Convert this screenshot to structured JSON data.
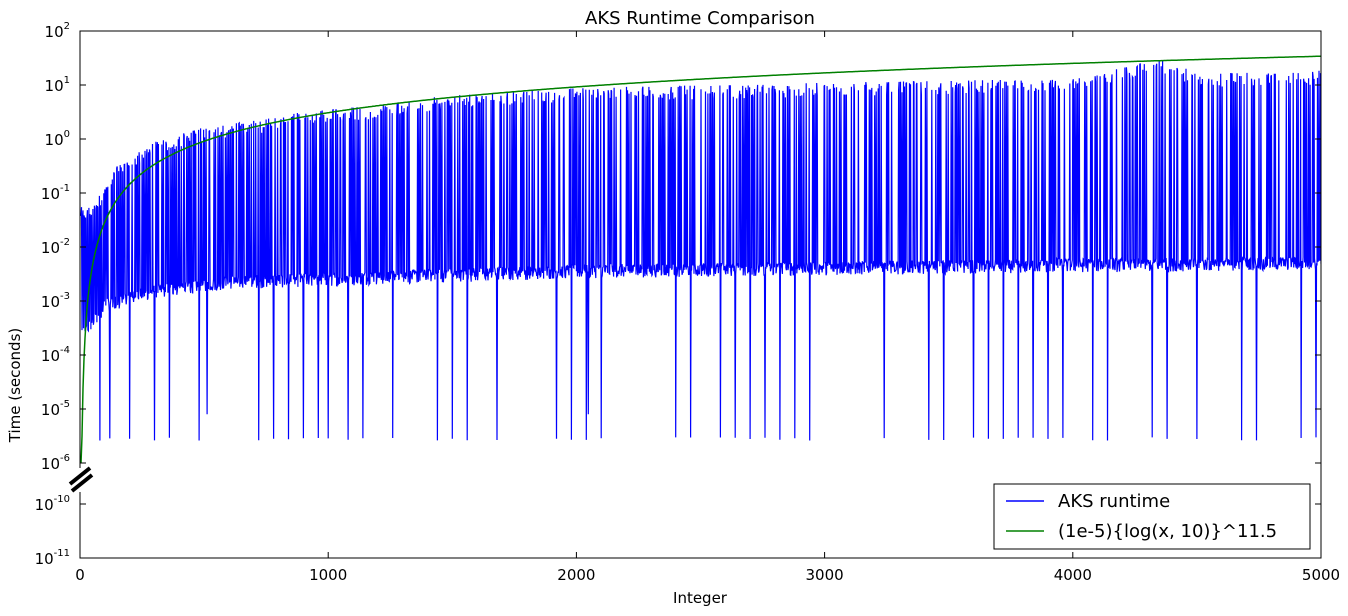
{
  "chart_data": {
    "type": "line",
    "title": "AKS Runtime Comparison",
    "xlabel": "Integer",
    "ylabel": "Time (seconds)",
    "xlim": [
      0,
      5000
    ],
    "yscale": "log",
    "ylim": [
      1e-11,
      100
    ],
    "y_axis_break": "broken between 10^-6 and 10^-10",
    "x_ticks": [
      "0",
      "1000",
      "2000",
      "3000",
      "4000",
      "5000"
    ],
    "y_ticks": [
      {
        "base": "10",
        "exp": "2"
      },
      {
        "base": "10",
        "exp": "1"
      },
      {
        "base": "10",
        "exp": "0"
      },
      {
        "base": "10",
        "exp": "-1"
      },
      {
        "base": "10",
        "exp": "-2"
      },
      {
        "base": "10",
        "exp": "-3"
      },
      {
        "base": "10",
        "exp": "-4"
      },
      {
        "base": "10",
        "exp": "-5"
      },
      {
        "base": "10",
        "exp": "-6"
      },
      {
        "base": "10",
        "exp": "-10"
      },
      {
        "base": "10",
        "exp": "-11"
      }
    ],
    "legend_position": "lower-right",
    "series": [
      {
        "name": "AKS runtime",
        "color": "#0000ff",
        "approx_profile": {
          "composite_baseline": [
            [
              20,
              0.00025
            ],
            [
              100,
              0.0008
            ],
            [
              300,
              0.0015
            ],
            [
              600,
              0.0022
            ],
            [
              1000,
              0.0025
            ],
            [
              2000,
              0.0035
            ],
            [
              3000,
              0.004
            ],
            [
              4000,
              0.0045
            ],
            [
              5000,
              0.005
            ]
          ],
          "prime_peaks": [
            [
              50,
              0.05
            ],
            [
              150,
              0.3
            ],
            [
              300,
              0.8
            ],
            [
              500,
              1.5
            ],
            [
              700,
              2.0
            ],
            [
              900,
              3.0
            ],
            [
              1200,
              4.0
            ],
            [
              1500,
              6.0
            ],
            [
              2000,
              8.0
            ],
            [
              2500,
              9.0
            ],
            [
              3000,
              10.0
            ],
            [
              3500,
              11.0
            ],
            [
              4000,
              12.0
            ],
            [
              4363,
              28.0
            ],
            [
              4500,
              15.0
            ],
            [
              5000,
              17.0
            ]
          ],
          "power_of_prime_dips": [
            [
              17,
              3e-06
            ],
            [
              80,
              2.7e-06
            ],
            [
              200,
              2.7e-06
            ],
            [
              512,
              8e-06
            ],
            [
              1000,
              2.8e-06
            ],
            [
              2048,
              8e-06
            ],
            [
              3000,
              2.8e-06
            ],
            [
              4000,
              4e-06
            ],
            [
              4913,
              2.9e-06
            ]
          ]
        }
      },
      {
        "name": "(1e-5){log(x, 10)}^11.5",
        "color": "#008000",
        "formula": "1e-5 * log10(x)^11.5"
      }
    ]
  }
}
